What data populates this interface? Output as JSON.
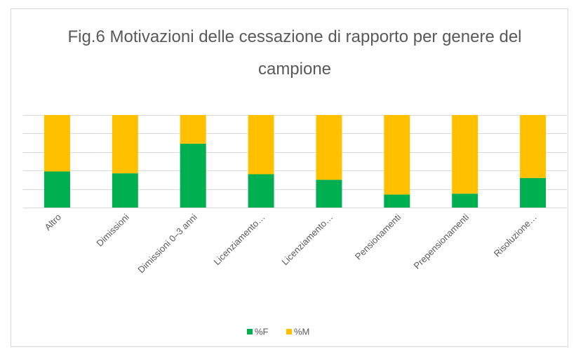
{
  "chart_data": {
    "type": "bar",
    "stacked": true,
    "title": "Fig.6 Motivazioni delle cessazione di rapporto per genere del campione",
    "categories": [
      "Altro",
      "Dimissioni",
      "Dimissioni 0–3 anni",
      "Licenziamento…",
      "Licenziamento…",
      "Pensionamenti",
      "Prepensionamenti",
      "Risoluzione…"
    ],
    "series": [
      {
        "name": "%F",
        "color": "#00b050",
        "values": [
          39,
          37,
          69,
          36,
          30,
          14,
          15,
          32
        ]
      },
      {
        "name": "%M",
        "color": "#ffc000",
        "values": [
          61,
          63,
          31,
          64,
          70,
          86,
          85,
          68
        ]
      }
    ],
    "ylim": [
      0,
      100
    ],
    "yticks": [
      0,
      20,
      40,
      60,
      80,
      100
    ],
    "grid": true,
    "legend": "bottom"
  }
}
